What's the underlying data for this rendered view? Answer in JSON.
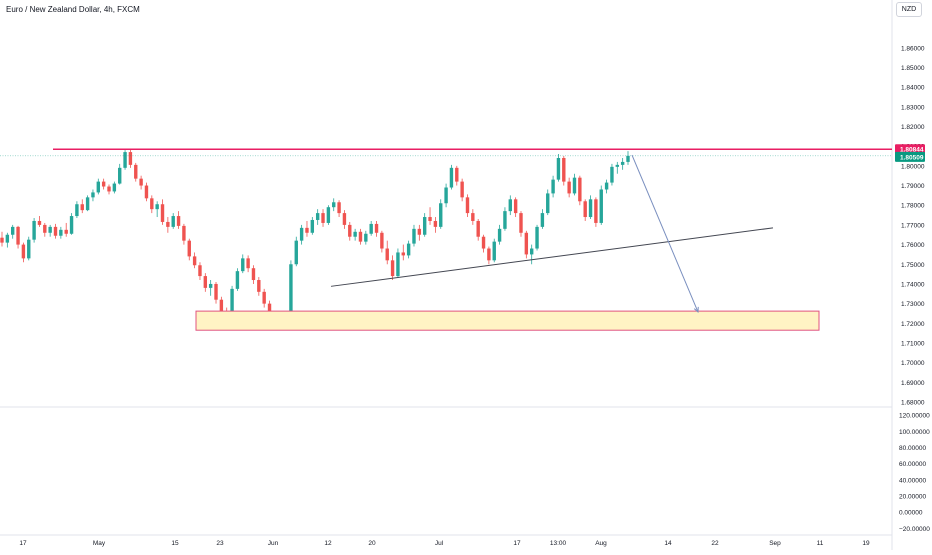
{
  "title": "Euro / New Zealand Dollar, 4h, FXCM",
  "currency_button": "NZD",
  "colors": {
    "up": "#26a69a",
    "down": "#ef5350",
    "resistance": "#e91e63",
    "last_price": "#089981",
    "support_zone_fill": "#fff3c4",
    "support_zone_border": "#e0537f",
    "trendline": "#434651",
    "projection": "#7a8fbf",
    "axis_text": "#131722",
    "grid_line": "#e0e3eb"
  },
  "chart_data": {
    "type": "candlestick",
    "symbol": "Euro / New Zealand Dollar",
    "interval": "4h",
    "exchange": "FXCM",
    "price_axis": {
      "ticks": [
        "1.86000",
        "1.85000",
        "1.84000",
        "1.83000",
        "1.82000",
        "1.81000",
        "1.80000",
        "1.79000",
        "1.78000",
        "1.77000",
        "1.76000",
        "1.75000",
        "1.74000",
        "1.73000",
        "1.72000",
        "1.71000",
        "1.70000",
        "1.69000",
        "1.68000"
      ],
      "range": [
        1.6785,
        1.8675
      ]
    },
    "price_labels": {
      "resistance": "1.80844",
      "last_price": "1.80509"
    },
    "resistance_level": 1.80844,
    "last_price": 1.80509,
    "indicator_axis": {
      "ticks": [
        "120.00000",
        "100.00000",
        "80.00000",
        "60.00000",
        "40.00000",
        "20.00000",
        "0.00000",
        "−20.00000"
      ],
      "range": [
        -22,
        124
      ]
    },
    "time_axis": {
      "labels": [
        "17",
        "May",
        "15",
        "23",
        "Jun",
        "12",
        "20",
        "Jul",
        "17",
        "13:00",
        "Aug",
        "14",
        "22",
        "Sep",
        "11",
        "19"
      ]
    },
    "support_zone": {
      "from_price": 1.7262,
      "to_price": 1.7165,
      "from_label": "15",
      "to_label": "Sep"
    },
    "trendline": {
      "from_price": 1.7388,
      "to_price": 1.7685,
      "from_label": "12",
      "to_label": "Sep"
    },
    "projection": {
      "from_price": 1.8055,
      "to_price": 1.7258,
      "from_label": "Aug",
      "to_label": "22"
    },
    "candles": [
      {
        "o": 1.7635,
        "h": 1.7665,
        "l": 1.759,
        "c": 1.761
      },
      {
        "o": 1.761,
        "h": 1.766,
        "l": 1.7585,
        "c": 1.765
      },
      {
        "o": 1.765,
        "h": 1.77,
        "l": 1.763,
        "c": 1.769
      },
      {
        "o": 1.769,
        "h": 1.7695,
        "l": 1.758,
        "c": 1.76
      },
      {
        "o": 1.76,
        "h": 1.761,
        "l": 1.751,
        "c": 1.753
      },
      {
        "o": 1.753,
        "h": 1.764,
        "l": 1.752,
        "c": 1.7625
      },
      {
        "o": 1.7625,
        "h": 1.7735,
        "l": 1.761,
        "c": 1.772
      },
      {
        "o": 1.772,
        "h": 1.7745,
        "l": 1.769,
        "c": 1.77
      },
      {
        "o": 1.77,
        "h": 1.771,
        "l": 1.764,
        "c": 1.766
      },
      {
        "o": 1.766,
        "h": 1.77,
        "l": 1.764,
        "c": 1.769
      },
      {
        "o": 1.769,
        "h": 1.7705,
        "l": 1.763,
        "c": 1.7645
      },
      {
        "o": 1.7645,
        "h": 1.769,
        "l": 1.763,
        "c": 1.7675
      },
      {
        "o": 1.7675,
        "h": 1.771,
        "l": 1.764,
        "c": 1.7655
      },
      {
        "o": 1.7655,
        "h": 1.776,
        "l": 1.765,
        "c": 1.7745
      },
      {
        "o": 1.7745,
        "h": 1.782,
        "l": 1.7735,
        "c": 1.7805
      },
      {
        "o": 1.7805,
        "h": 1.783,
        "l": 1.776,
        "c": 1.7775
      },
      {
        "o": 1.7775,
        "h": 1.785,
        "l": 1.777,
        "c": 1.784
      },
      {
        "o": 1.784,
        "h": 1.788,
        "l": 1.782,
        "c": 1.7865
      },
      {
        "o": 1.7865,
        "h": 1.7935,
        "l": 1.7855,
        "c": 1.792
      },
      {
        "o": 1.792,
        "h": 1.7935,
        "l": 1.788,
        "c": 1.7895
      },
      {
        "o": 1.7895,
        "h": 1.7905,
        "l": 1.7855,
        "c": 1.787
      },
      {
        "o": 1.787,
        "h": 1.792,
        "l": 1.786,
        "c": 1.791
      },
      {
        "o": 1.791,
        "h": 1.801,
        "l": 1.7905,
        "c": 1.799
      },
      {
        "o": 1.799,
        "h": 1.808,
        "l": 1.798,
        "c": 1.807
      },
      {
        "o": 1.807,
        "h": 1.8084,
        "l": 1.799,
        "c": 1.8005
      },
      {
        "o": 1.8005,
        "h": 1.8015,
        "l": 1.792,
        "c": 1.7935
      },
      {
        "o": 1.7935,
        "h": 1.795,
        "l": 1.788,
        "c": 1.79
      },
      {
        "o": 1.79,
        "h": 1.7915,
        "l": 1.782,
        "c": 1.7835
      },
      {
        "o": 1.7835,
        "h": 1.785,
        "l": 1.776,
        "c": 1.778
      },
      {
        "o": 1.778,
        "h": 1.782,
        "l": 1.774,
        "c": 1.7805
      },
      {
        "o": 1.7805,
        "h": 1.783,
        "l": 1.77,
        "c": 1.7715
      },
      {
        "o": 1.7715,
        "h": 1.774,
        "l": 1.766,
        "c": 1.769
      },
      {
        "o": 1.769,
        "h": 1.776,
        "l": 1.768,
        "c": 1.7745
      },
      {
        "o": 1.7745,
        "h": 1.777,
        "l": 1.768,
        "c": 1.7695
      },
      {
        "o": 1.7695,
        "h": 1.7705,
        "l": 1.76,
        "c": 1.762
      },
      {
        "o": 1.762,
        "h": 1.763,
        "l": 1.752,
        "c": 1.754
      },
      {
        "o": 1.754,
        "h": 1.756,
        "l": 1.748,
        "c": 1.7495
      },
      {
        "o": 1.7495,
        "h": 1.751,
        "l": 1.742,
        "c": 1.744
      },
      {
        "o": 1.744,
        "h": 1.7455,
        "l": 1.736,
        "c": 1.738
      },
      {
        "o": 1.738,
        "h": 1.742,
        "l": 1.734,
        "c": 1.74
      },
      {
        "o": 1.74,
        "h": 1.741,
        "l": 1.73,
        "c": 1.732
      },
      {
        "o": 1.732,
        "h": 1.7335,
        "l": 1.724,
        "c": 1.7255
      },
      {
        "o": 1.7255,
        "h": 1.728,
        "l": 1.721,
        "c": 1.723
      },
      {
        "o": 1.723,
        "h": 1.739,
        "l": 1.7225,
        "c": 1.7375
      },
      {
        "o": 1.7375,
        "h": 1.748,
        "l": 1.7365,
        "c": 1.7465
      },
      {
        "o": 1.7465,
        "h": 1.755,
        "l": 1.7455,
        "c": 1.753
      },
      {
        "o": 1.753,
        "h": 1.7545,
        "l": 1.746,
        "c": 1.748
      },
      {
        "o": 1.748,
        "h": 1.7495,
        "l": 1.74,
        "c": 1.742
      },
      {
        "o": 1.742,
        "h": 1.7435,
        "l": 1.734,
        "c": 1.736
      },
      {
        "o": 1.736,
        "h": 1.7375,
        "l": 1.728,
        "c": 1.73
      },
      {
        "o": 1.73,
        "h": 1.7315,
        "l": 1.722,
        "c": 1.724
      },
      {
        "o": 1.724,
        "h": 1.726,
        "l": 1.718,
        "c": 1.72
      },
      {
        "o": 1.72,
        "h": 1.723,
        "l": 1.7175,
        "c": 1.7215
      },
      {
        "o": 1.7215,
        "h": 1.724,
        "l": 1.719,
        "c": 1.7225
      },
      {
        "o": 1.7225,
        "h": 1.752,
        "l": 1.722,
        "c": 1.75
      },
      {
        "o": 1.75,
        "h": 1.764,
        "l": 1.749,
        "c": 1.762
      },
      {
        "o": 1.762,
        "h": 1.77,
        "l": 1.76,
        "c": 1.7685
      },
      {
        "o": 1.7685,
        "h": 1.772,
        "l": 1.764,
        "c": 1.766
      },
      {
        "o": 1.766,
        "h": 1.774,
        "l": 1.765,
        "c": 1.7725
      },
      {
        "o": 1.7725,
        "h": 1.778,
        "l": 1.77,
        "c": 1.776
      },
      {
        "o": 1.776,
        "h": 1.778,
        "l": 1.769,
        "c": 1.771
      },
      {
        "o": 1.771,
        "h": 1.78,
        "l": 1.77,
        "c": 1.779
      },
      {
        "o": 1.779,
        "h": 1.7835,
        "l": 1.777,
        "c": 1.7815
      },
      {
        "o": 1.7815,
        "h": 1.7825,
        "l": 1.774,
        "c": 1.776
      },
      {
        "o": 1.776,
        "h": 1.7775,
        "l": 1.768,
        "c": 1.77
      },
      {
        "o": 1.77,
        "h": 1.7715,
        "l": 1.762,
        "c": 1.764
      },
      {
        "o": 1.764,
        "h": 1.768,
        "l": 1.762,
        "c": 1.7665
      },
      {
        "o": 1.7665,
        "h": 1.768,
        "l": 1.76,
        "c": 1.7615
      },
      {
        "o": 1.7615,
        "h": 1.767,
        "l": 1.76,
        "c": 1.7655
      },
      {
        "o": 1.7655,
        "h": 1.772,
        "l": 1.7645,
        "c": 1.7705
      },
      {
        "o": 1.7705,
        "h": 1.772,
        "l": 1.764,
        "c": 1.766
      },
      {
        "o": 1.766,
        "h": 1.767,
        "l": 1.756,
        "c": 1.758
      },
      {
        "o": 1.758,
        "h": 1.762,
        "l": 1.75,
        "c": 1.752
      },
      {
        "o": 1.752,
        "h": 1.7545,
        "l": 1.742,
        "c": 1.744
      },
      {
        "o": 1.744,
        "h": 1.758,
        "l": 1.743,
        "c": 1.756
      },
      {
        "o": 1.756,
        "h": 1.76,
        "l": 1.752,
        "c": 1.7545
      },
      {
        "o": 1.7545,
        "h": 1.762,
        "l": 1.753,
        "c": 1.7605
      },
      {
        "o": 1.7605,
        "h": 1.77,
        "l": 1.759,
        "c": 1.768
      },
      {
        "o": 1.768,
        "h": 1.77,
        "l": 1.762,
        "c": 1.765
      },
      {
        "o": 1.765,
        "h": 1.776,
        "l": 1.764,
        "c": 1.774
      },
      {
        "o": 1.774,
        "h": 1.779,
        "l": 1.77,
        "c": 1.772
      },
      {
        "o": 1.772,
        "h": 1.774,
        "l": 1.766,
        "c": 1.769
      },
      {
        "o": 1.769,
        "h": 1.783,
        "l": 1.768,
        "c": 1.781
      },
      {
        "o": 1.781,
        "h": 1.791,
        "l": 1.779,
        "c": 1.789
      },
      {
        "o": 1.789,
        "h": 1.8005,
        "l": 1.788,
        "c": 1.799
      },
      {
        "o": 1.799,
        "h": 1.8,
        "l": 1.79,
        "c": 1.792
      },
      {
        "o": 1.792,
        "h": 1.7935,
        "l": 1.782,
        "c": 1.784
      },
      {
        "o": 1.784,
        "h": 1.7855,
        "l": 1.774,
        "c": 1.776
      },
      {
        "o": 1.776,
        "h": 1.778,
        "l": 1.77,
        "c": 1.772
      },
      {
        "o": 1.772,
        "h": 1.773,
        "l": 1.762,
        "c": 1.764
      },
      {
        "o": 1.764,
        "h": 1.765,
        "l": 1.756,
        "c": 1.758
      },
      {
        "o": 1.758,
        "h": 1.759,
        "l": 1.75,
        "c": 1.752
      },
      {
        "o": 1.752,
        "h": 1.763,
        "l": 1.751,
        "c": 1.7615
      },
      {
        "o": 1.7615,
        "h": 1.77,
        "l": 1.76,
        "c": 1.768
      },
      {
        "o": 1.768,
        "h": 1.779,
        "l": 1.767,
        "c": 1.777
      },
      {
        "o": 1.777,
        "h": 1.785,
        "l": 1.775,
        "c": 1.783
      },
      {
        "o": 1.783,
        "h": 1.784,
        "l": 1.774,
        "c": 1.776
      },
      {
        "o": 1.776,
        "h": 1.777,
        "l": 1.764,
        "c": 1.766
      },
      {
        "o": 1.766,
        "h": 1.767,
        "l": 1.753,
        "c": 1.755
      },
      {
        "o": 1.755,
        "h": 1.76,
        "l": 1.75,
        "c": 1.758
      },
      {
        "o": 1.758,
        "h": 1.77,
        "l": 1.757,
        "c": 1.769
      },
      {
        "o": 1.769,
        "h": 1.778,
        "l": 1.768,
        "c": 1.776
      },
      {
        "o": 1.776,
        "h": 1.788,
        "l": 1.775,
        "c": 1.786
      },
      {
        "o": 1.786,
        "h": 1.795,
        "l": 1.784,
        "c": 1.793
      },
      {
        "o": 1.793,
        "h": 1.806,
        "l": 1.792,
        "c": 1.804
      },
      {
        "o": 1.804,
        "h": 1.805,
        "l": 1.79,
        "c": 1.792
      },
      {
        "o": 1.792,
        "h": 1.794,
        "l": 1.784,
        "c": 1.786
      },
      {
        "o": 1.786,
        "h": 1.796,
        "l": 1.785,
        "c": 1.794
      },
      {
        "o": 1.794,
        "h": 1.795,
        "l": 1.78,
        "c": 1.782
      },
      {
        "o": 1.782,
        "h": 1.783,
        "l": 1.772,
        "c": 1.774
      },
      {
        "o": 1.774,
        "h": 1.785,
        "l": 1.773,
        "c": 1.783
      },
      {
        "o": 1.783,
        "h": 1.784,
        "l": 1.769,
        "c": 1.771
      },
      {
        "o": 1.771,
        "h": 1.79,
        "l": 1.77,
        "c": 1.788
      },
      {
        "o": 1.788,
        "h": 1.793,
        "l": 1.786,
        "c": 1.7915
      },
      {
        "o": 1.7915,
        "h": 1.801,
        "l": 1.79,
        "c": 1.7995
      },
      {
        "o": 1.7995,
        "h": 1.802,
        "l": 1.796,
        "c": 1.8005
      },
      {
        "o": 1.8005,
        "h": 1.804,
        "l": 1.798,
        "c": 1.802
      },
      {
        "o": 1.802,
        "h": 1.8075,
        "l": 1.8005,
        "c": 1.8051
      }
    ]
  }
}
